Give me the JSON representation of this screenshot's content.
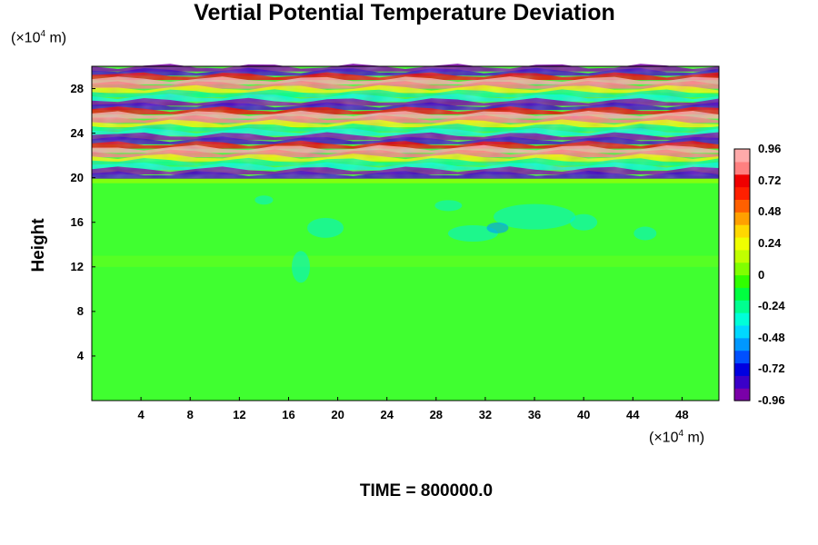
{
  "chart_data": {
    "type": "heatmap",
    "title": "Vertial Potential Temperature Deviation",
    "ylabel": "Height",
    "y_unit": "(×10^4 m)",
    "x_unit": "(×10^4 m)",
    "x_unit_base": "(×10",
    "x_unit_exp": "4",
    "x_unit_tail": " m)",
    "y_unit_base": "(×10",
    "y_unit_exp": "4",
    "y_unit_tail": " m)",
    "xlim": [
      0,
      51
    ],
    "ylim": [
      0,
      30
    ],
    "x_ticks": [
      4,
      8,
      12,
      16,
      20,
      24,
      28,
      32,
      36,
      40,
      44,
      48
    ],
    "y_ticks": [
      4,
      8,
      12,
      16,
      20,
      24,
      28
    ],
    "x_tick_labels": [
      "4",
      "8",
      "12",
      "16",
      "20",
      "24",
      "28",
      "32",
      "36",
      "40",
      "44",
      "48"
    ],
    "y_tick_labels": [
      "4",
      "8",
      "12",
      "16",
      "20",
      "24",
      "28"
    ],
    "colorbar": {
      "range": [
        -0.96,
        0.96
      ],
      "tick_values": [
        0.96,
        0.72,
        0.48,
        0.24,
        0,
        -0.24,
        -0.48,
        -0.72,
        -0.96
      ],
      "tick_labels": [
        "0.96",
        "0.72",
        "0.48",
        "0.24",
        "0",
        "-0.24",
        "-0.48",
        "-0.72",
        "-0.96"
      ],
      "colors": [
        "#7a00a8",
        "#3a00c8",
        "#0000e0",
        "#0050ff",
        "#0098ff",
        "#00d8ff",
        "#00ffd8",
        "#00ff90",
        "#00ff40",
        "#30ff00",
        "#80ff00",
        "#c0ff00",
        "#f0ff00",
        "#ffd800",
        "#ffa000",
        "#ff6000",
        "#ff2000",
        "#f00000",
        "#ff8080",
        "#ffaaaa"
      ]
    },
    "field_description_regions": {
      "upper_band_y_range": [
        20,
        30
      ],
      "lower_band_y_range": [
        0,
        20
      ]
    }
  },
  "footer": {
    "time_label": "TIME = 800000.0"
  }
}
